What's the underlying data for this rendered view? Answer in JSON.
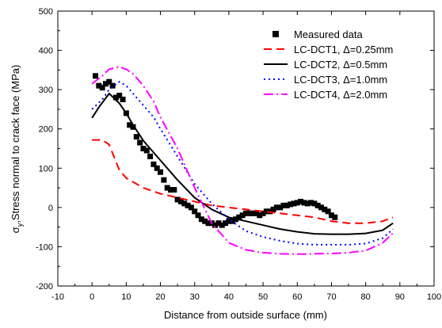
{
  "chart_data": {
    "type": "line",
    "title": "",
    "xlabel": "Distance from outside surface (mm)",
    "ylabel": "σ_y,Stress normal to crack face (MPa)",
    "ylabel_sigma": "σ",
    "ylabel_sub": "y",
    "ylabel_rest": ",Stress normal to crack face (MPa)",
    "xlim": [
      -10,
      100
    ],
    "ylim": [
      -200,
      500
    ],
    "xticks": [
      -10,
      0,
      10,
      20,
      30,
      40,
      50,
      60,
      70,
      80,
      90,
      100
    ],
    "yticks": [
      -200,
      -100,
      0,
      100,
      200,
      300,
      400,
      500
    ],
    "grid": false,
    "legend_position": "top-right",
    "series": [
      {
        "name": "Measured data",
        "style": "markers",
        "marker": "square",
        "color": "#000000",
        "x": [
          1,
          2,
          3,
          4,
          5,
          6,
          7,
          8,
          9,
          10,
          11,
          12,
          13,
          14,
          15,
          16,
          17,
          18,
          19,
          20,
          21,
          22,
          23,
          24,
          25,
          26,
          27,
          28,
          29,
          30,
          31,
          32,
          33,
          34,
          35,
          36,
          37,
          38,
          39,
          40,
          41,
          42,
          43,
          44,
          45,
          46,
          47,
          48,
          49,
          50,
          51,
          52,
          53,
          54,
          55,
          56,
          57,
          58,
          59,
          60,
          61,
          62,
          63,
          64,
          65,
          66,
          67,
          68,
          69,
          70,
          71
        ],
        "y": [
          335,
          310,
          305,
          315,
          320,
          310,
          280,
          285,
          275,
          240,
          210,
          205,
          180,
          165,
          150,
          145,
          130,
          110,
          100,
          90,
          70,
          50,
          45,
          45,
          20,
          15,
          10,
          5,
          0,
          -10,
          -20,
          -30,
          -35,
          -40,
          -40,
          -45,
          -40,
          -45,
          -40,
          -35,
          -35,
          -30,
          -25,
          -20,
          -15,
          -15,
          -15,
          -15,
          -20,
          -15,
          -10,
          -10,
          -5,
          0,
          0,
          5,
          5,
          8,
          10,
          12,
          15,
          12,
          10,
          12,
          10,
          5,
          0,
          -5,
          -10,
          -20,
          -25
        ]
      },
      {
        "name": "LC-DCT1, Δ=0.25mm",
        "style": "dash",
        "color": "#ff0000",
        "x": [
          0,
          3,
          5,
          8,
          10,
          15,
          20,
          25,
          30,
          35,
          40,
          45,
          50,
          55,
          60,
          65,
          70,
          75,
          80,
          85,
          88
        ],
        "y": [
          172,
          172,
          160,
          95,
          75,
          50,
          35,
          25,
          15,
          5,
          0,
          -5,
          -10,
          -15,
          -20,
          -25,
          -35,
          -40,
          -40,
          -35,
          -25
        ]
      },
      {
        "name": "LC-DCT2, Δ=0.5mm",
        "style": "solid",
        "color": "#000000",
        "x": [
          0,
          2,
          5,
          8,
          10,
          12,
          15,
          18,
          20,
          25,
          30,
          35,
          40,
          45,
          50,
          55,
          60,
          65,
          70,
          75,
          80,
          85,
          88
        ],
        "y": [
          228,
          255,
          290,
          265,
          240,
          210,
          170,
          140,
          120,
          70,
          25,
          -5,
          -25,
          -35,
          -45,
          -55,
          -62,
          -67,
          -68,
          -68,
          -66,
          -58,
          -40
        ]
      },
      {
        "name": "LC-DCT3, Δ=1.0mm",
        "style": "dot",
        "color": "#0000ff",
        "x": [
          0,
          3,
          5,
          8,
          10,
          12,
          15,
          18,
          20,
          25,
          30,
          35,
          40,
          45,
          50,
          55,
          60,
          65,
          70,
          75,
          80,
          85,
          88
        ],
        "y": [
          250,
          275,
          300,
          320,
          310,
          290,
          260,
          230,
          200,
          130,
          60,
          10,
          -30,
          -60,
          -75,
          -85,
          -92,
          -95,
          -95,
          -95,
          -92,
          -78,
          -55
        ]
      },
      {
        "name": "LC-DCT4, Δ=2.0mm",
        "style": "dashdot",
        "color": "#ff00ff",
        "x": [
          0,
          3,
          5,
          8,
          10,
          12,
          15,
          18,
          20,
          25,
          30,
          35,
          40,
          45,
          50,
          55,
          60,
          65,
          70,
          75,
          80,
          85,
          88
        ],
        "y": [
          315,
          335,
          352,
          358,
          352,
          340,
          310,
          270,
          230,
          150,
          50,
          -40,
          -90,
          -108,
          -115,
          -118,
          -119,
          -118,
          -117,
          -115,
          -110,
          -90,
          -65
        ]
      }
    ]
  }
}
